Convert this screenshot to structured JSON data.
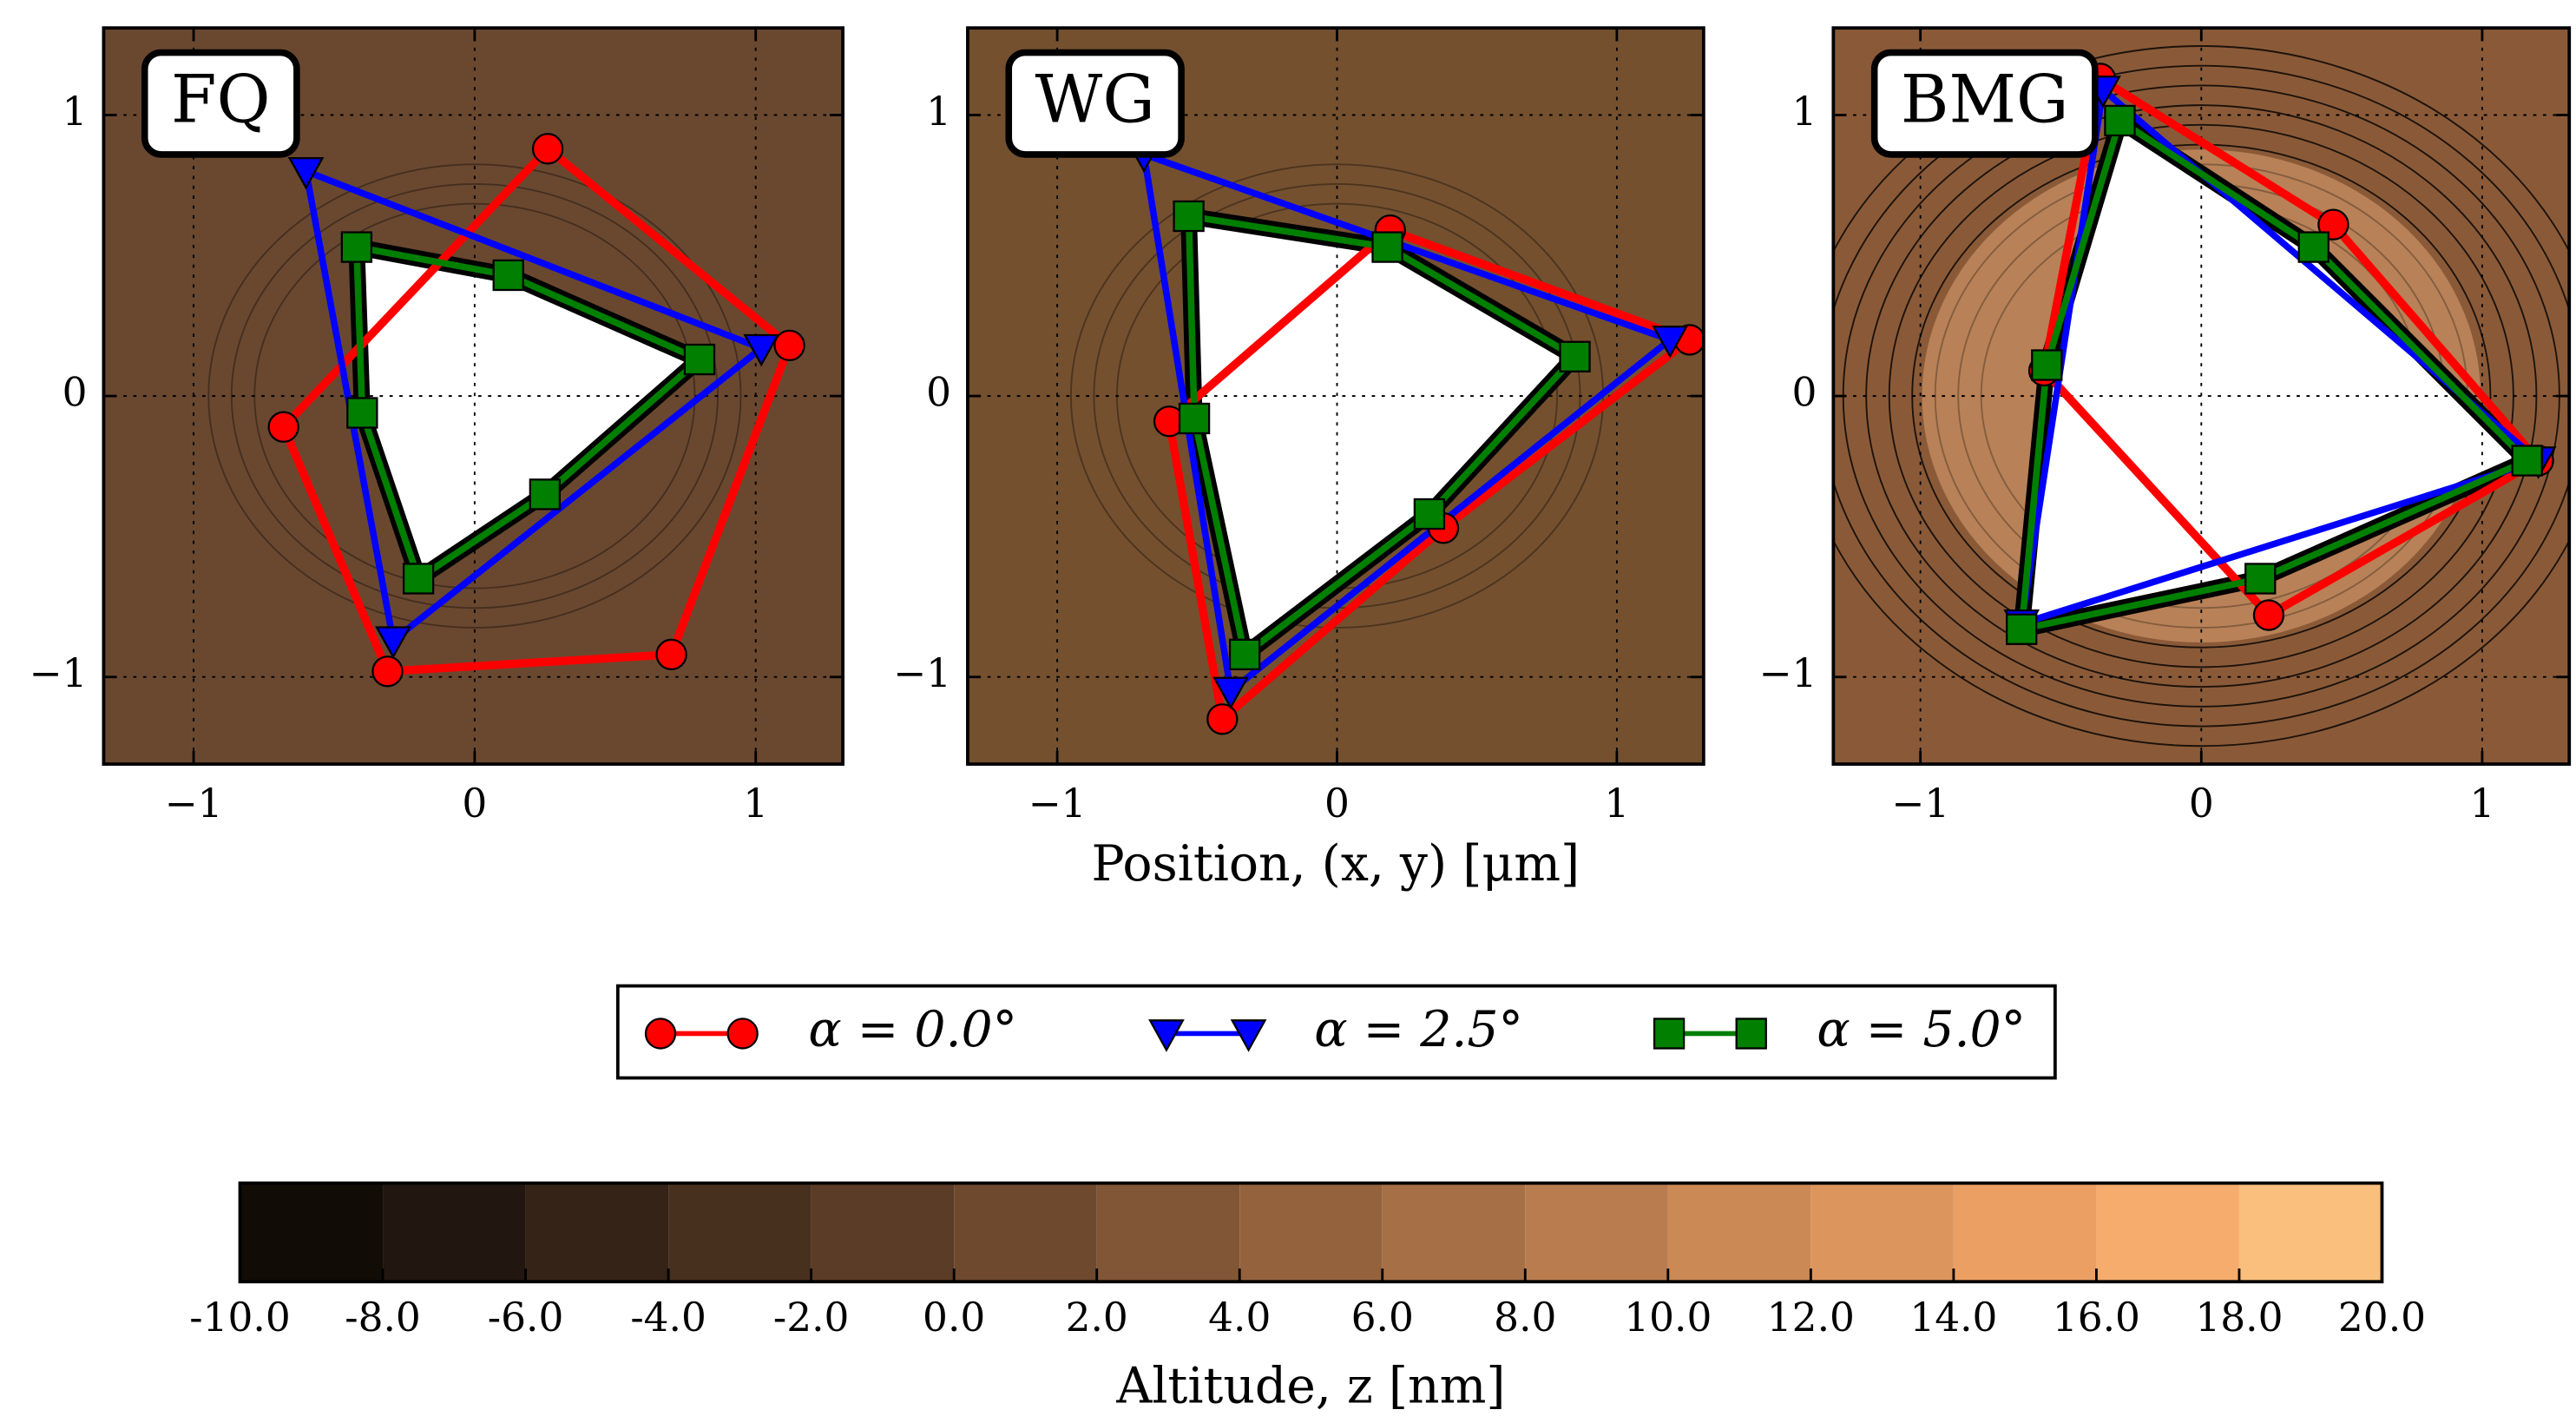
{
  "chart_data": [
    {
      "type": "line",
      "title": "FQ",
      "xlim": [
        -1.32,
        1.31
      ],
      "ylim": [
        -1.31,
        1.31
      ],
      "xticks": [
        {
          "value": -1,
          "label": "−1"
        },
        0,
        1
      ],
      "yticks": [
        {
          "value": -1,
          "label": "−1"
        },
        0,
        1
      ],
      "grid": true,
      "background": "#6a4830",
      "series": [
        {
          "color": "#ff0000",
          "marker": "circle",
          "x": [
            0.26,
            1.12,
            0.7,
            -0.31,
            -0.68
          ],
          "y": [
            0.88,
            0.18,
            -0.92,
            -0.98,
            -0.11
          ]
        },
        {
          "color": "#0000ff",
          "marker": "triangle",
          "x": [
            -0.6,
            1.02,
            -0.29
          ],
          "y": [
            0.8,
            0.17,
            -0.87
          ]
        },
        {
          "color": "#007f00",
          "marker": "square",
          "x": [
            -0.42,
            0.12,
            0.8,
            0.25,
            -0.2,
            -0.4
          ],
          "y": [
            0.53,
            0.43,
            0.13,
            -0.35,
            -0.65,
            -0.06
          ]
        }
      ]
    },
    {
      "type": "line",
      "title": "WG",
      "xlabel": "Position, (x, y) [μm]",
      "xlim": [
        -1.32,
        1.31
      ],
      "ylim": [
        -1.31,
        1.31
      ],
      "xticks": [
        {
          "value": -1,
          "label": "−1"
        },
        0,
        1
      ],
      "yticks": [
        {
          "value": -1,
          "label": "−1"
        },
        0,
        1
      ],
      "grid": true,
      "background": "#74502f",
      "series": [
        {
          "color": "#ff0000",
          "marker": "circle",
          "x": [
            0.19,
            1.26,
            0.38,
            -0.41,
            -0.6
          ],
          "y": [
            0.59,
            0.2,
            -0.47,
            -1.15,
            -0.09
          ]
        },
        {
          "color": "#0000ff",
          "marker": "triangle",
          "x": [
            -0.69,
            1.19,
            -0.38
          ],
          "y": [
            0.86,
            0.2,
            -1.05
          ]
        },
        {
          "color": "#007f00",
          "marker": "square",
          "x": [
            -0.53,
            0.18,
            0.85,
            0.33,
            -0.33,
            -0.51
          ],
          "y": [
            0.64,
            0.53,
            0.14,
            -0.42,
            -0.92,
            -0.08
          ]
        }
      ]
    },
    {
      "type": "line",
      "title": "BMG",
      "xlim": [
        -1.31,
        1.31
      ],
      "ylim": [
        -1.31,
        1.31
      ],
      "xticks": [
        {
          "value": -1,
          "label": "−1"
        },
        0,
        1
      ],
      "yticks": [
        {
          "value": -1,
          "label": "−1"
        },
        0,
        1
      ],
      "grid": true,
      "background": "#8a5a38",
      "series": [
        {
          "color": "#ff0000",
          "marker": "circle",
          "x": [
            -0.36,
            0.47,
            1.2,
            0.24,
            -0.56
          ],
          "y": [
            1.13,
            0.61,
            -0.23,
            -0.78,
            0.09
          ]
        },
        {
          "color": "#0000ff",
          "marker": "triangle",
          "x": [
            -0.35,
            1.2,
            -0.64
          ],
          "y": [
            1.09,
            -0.23,
            -0.81
          ]
        },
        {
          "color": "#007f00",
          "marker": "square",
          "x": [
            -0.29,
            0.4,
            1.16,
            0.21,
            -0.64,
            -0.55
          ],
          "y": [
            0.98,
            0.53,
            -0.23,
            -0.65,
            -0.83,
            0.11
          ]
        }
      ]
    },
    {
      "type": "colorbar",
      "xlabel": "Altitude, z [nm]",
      "xlim": [
        -10,
        20
      ],
      "xticks": [
        {
          "value": -10,
          "label": "-10.0"
        },
        {
          "value": -8,
          "label": "-8.0"
        },
        {
          "value": -6,
          "label": "-6.0"
        },
        {
          "value": -4,
          "label": "-4.0"
        },
        {
          "value": -2,
          "label": "-2.0"
        },
        {
          "value": 0,
          "label": "0.0"
        },
        {
          "value": 2,
          "label": "2.0"
        },
        {
          "value": 4,
          "label": "4.0"
        },
        {
          "value": 6,
          "label": "6.0"
        },
        {
          "value": 8,
          "label": "8.0"
        },
        {
          "value": 10,
          "label": "10.0"
        },
        {
          "value": 12,
          "label": "12.0"
        },
        {
          "value": 14,
          "label": "14.0"
        },
        {
          "value": 16,
          "label": "16.0"
        },
        {
          "value": 18,
          "label": "18.0"
        },
        {
          "value": 20,
          "label": "20.0"
        }
      ],
      "colors": [
        "#120c07",
        "#221710",
        "#352317",
        "#48301f",
        "#5b3c26",
        "#6e492e",
        "#815636",
        "#94633e",
        "#a66f46",
        "#b97c4e",
        "#cb8956",
        "#dc955d",
        "#ec9f63",
        "#f6ac6c",
        "#fbbf7d"
      ]
    }
  ],
  "legend": [
    {
      "name": "α = 0.0°",
      "color": "#ff0000",
      "marker": "circle"
    },
    {
      "name": "α = 2.5°",
      "color": "#0000ff",
      "marker": "triangle"
    },
    {
      "name": "α = 5.0°",
      "color": "#007f00",
      "marker": "square"
    }
  ]
}
